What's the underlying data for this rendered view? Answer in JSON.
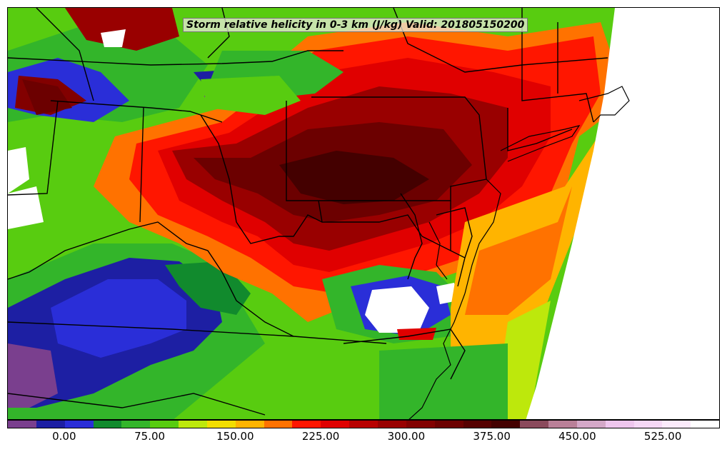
{
  "title": "Storm relative helicity in 0-3 km (J/kg) Valid: 201805150200",
  "colorbar": {
    "colors": [
      "#7a3f8e",
      "#1d1fa3",
      "#2a2ed8",
      "#118a2d",
      "#33b52a",
      "#58cc10",
      "#bde80c",
      "#f2de00",
      "#ffb400",
      "#ff7200",
      "#ff1600",
      "#e00000",
      "#b80000",
      "#990000",
      "#820000",
      "#6c0000",
      "#560000",
      "#440000",
      "#8a4a5c",
      "#b98098",
      "#d4a8c8",
      "#efc6ee",
      "#f6d8f6",
      "#fbeafb",
      "#ffffff"
    ],
    "tick_labels": [
      {
        "text": "0.00",
        "at": 2
      },
      {
        "text": "75.00",
        "at": 5
      },
      {
        "text": "150.00",
        "at": 8
      },
      {
        "text": "225.00",
        "at": 11
      },
      {
        "text": "300.00",
        "at": 14
      },
      {
        "text": "375.00",
        "at": 17
      },
      {
        "text": "450.00",
        "at": 20
      },
      {
        "text": "525.00",
        "at": 23
      }
    ]
  }
}
